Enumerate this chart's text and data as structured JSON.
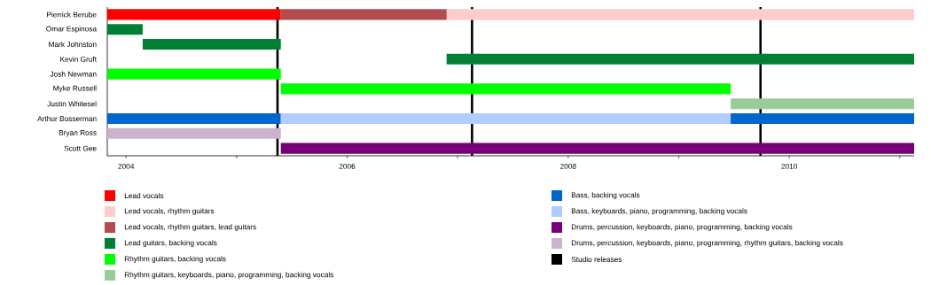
{
  "chart_data": {
    "type": "bar",
    "orientation": "horizontal",
    "legend": "bottom",
    "categories": [
      "Pierrick Berube",
      "Omar Espinosa",
      "Mark Johnston",
      "Kevin Gruft",
      "Josh Newman",
      "Myke Russell",
      "Justin Whitesel",
      "Arthur Bosserman",
      "Bryan Ross",
      "Scott Gee"
    ],
    "xlim": [
      2003.83,
      2011.13
    ],
    "xticks": [
      2004,
      {
        "value": 2005,
        "label": null
      },
      2006,
      {
        "value": 2007,
        "label": null
      },
      2008,
      {
        "value": 2009,
        "label": null
      },
      2010,
      {
        "value": 2011,
        "label": null
      }
    ],
    "series": [
      {
        "name": "Lead vocals",
        "color": "#ff0000",
        "base": [
          2003.83,
          null,
          null,
          null,
          null,
          null,
          null,
          null,
          null,
          null
        ],
        "values": [
          1.57,
          null,
          null,
          null,
          null,
          null,
          null,
          null,
          null,
          null
        ]
      },
      {
        "name": "Lead vocals, rhythm guitars",
        "color": "#ffcccc",
        "base": [
          2006.9,
          null,
          null,
          null,
          null,
          null,
          null,
          null,
          null,
          null
        ],
        "values": [
          4.23,
          null,
          null,
          null,
          null,
          null,
          null,
          null,
          null,
          null
        ]
      },
      {
        "name": "Lead vocals, rhythm guitars, lead guitars",
        "color": "#b34d4d",
        "base": [
          2005.4,
          null,
          null,
          null,
          null,
          null,
          null,
          null,
          null,
          null
        ],
        "values": [
          1.5,
          null,
          null,
          null,
          null,
          null,
          null,
          null,
          null,
          null
        ]
      },
      {
        "name": "Lead guitars, backing vocals",
        "color": "#008033",
        "base": [
          null,
          2003.83,
          2004.15,
          2006.9,
          null,
          null,
          null,
          null,
          null,
          null
        ],
        "values": [
          null,
          0.32,
          1.25,
          4.23,
          null,
          null,
          null,
          null,
          null,
          null
        ]
      },
      {
        "name": "Rhythm guitars, backing vocals",
        "color": "#00ff00",
        "base": [
          null,
          null,
          null,
          null,
          2003.83,
          2005.4,
          null,
          null,
          null,
          null
        ],
        "values": [
          null,
          null,
          null,
          null,
          1.57,
          4.07,
          null,
          null,
          null,
          null
        ]
      },
      {
        "name": "Rhythm guitars, keyboards, piano, programming, backing vocals",
        "color": "#99cc99",
        "base": [
          null,
          null,
          null,
          null,
          null,
          null,
          2009.47,
          null,
          null,
          null
        ],
        "values": [
          null,
          null,
          null,
          null,
          null,
          null,
          1.66,
          null,
          null,
          null
        ]
      },
      {
        "name": "Bass, backing vocals",
        "color": "#0066cc",
        "base": [
          null,
          null,
          null,
          null,
          null,
          null,
          null,
          2003.83,
          null,
          null
        ],
        "values": [
          null,
          null,
          null,
          null,
          null,
          null,
          null,
          1.57,
          null,
          null
        ]
      },
      {
        "name": "Bass, keyboards, piano, programming, backing vocals",
        "color": "#b3ccff",
        "base": [
          null,
          null,
          null,
          null,
          null,
          null,
          null,
          2005.4,
          null,
          null
        ],
        "values": [
          null,
          null,
          null,
          null,
          null,
          null,
          null,
          4.07,
          null,
          null
        ]
      },
      {
        "name": "Drums, percussion, keyboards, piano, programming, backing vocals",
        "color": "#770077",
        "base": [
          null,
          null,
          null,
          null,
          null,
          null,
          null,
          null,
          null,
          2005.4
        ],
        "values": [
          null,
          null,
          null,
          null,
          null,
          null,
          null,
          null,
          null,
          5.73
        ]
      },
      {
        "name": "Drums, percussion, keyboards, piano, programming, rhythm guitars, backing vocals",
        "color": "#ccb3cc",
        "base": [
          null,
          null,
          null,
          null,
          null,
          null,
          null,
          null,
          2003.83,
          null
        ],
        "values": [
          null,
          null,
          null,
          null,
          null,
          null,
          null,
          null,
          1.57,
          null
        ]
      },
      {
        "color": "#0066cc",
        "base": [
          null,
          null,
          null,
          null,
          null,
          null,
          null,
          2009.47,
          null,
          null
        ],
        "values": [
          null,
          null,
          null,
          null,
          null,
          null,
          null,
          1.66,
          null,
          null
        ]
      }
    ],
    "ref_lines": [
      {
        "axis": "x",
        "value": 2005.37,
        "label": "Studio releases",
        "color": "#000000"
      },
      {
        "axis": "x",
        "value": 2007.13,
        "color": "#000000"
      },
      {
        "axis": "x",
        "value": 2009.74,
        "color": "#000000"
      }
    ]
  }
}
